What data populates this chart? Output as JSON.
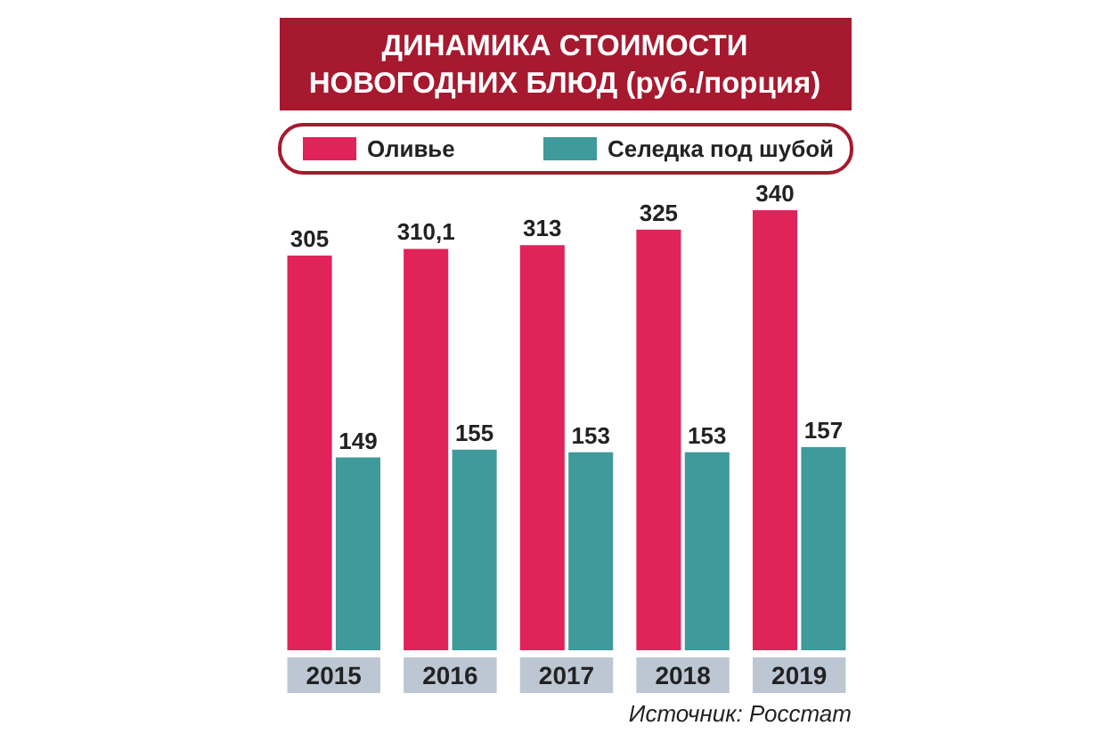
{
  "chart_data": {
    "type": "bar",
    "title": "ДИНАМИКА СТОИМОСТИ\nНОВОГОДНИХ БЛЮД (руб./порция)",
    "categories": [
      "2015",
      "2016",
      "2017",
      "2018",
      "2019"
    ],
    "series": [
      {
        "name": "Оливье",
        "color": "#e0245a",
        "values": [
          305,
          310.1,
          313,
          325,
          340
        ],
        "value_labels": [
          "305",
          "310,1",
          "313",
          "325",
          "340"
        ]
      },
      {
        "name": "Селедка под шубой",
        "color": "#3e9a9b",
        "values": [
          149,
          155,
          153,
          153,
          157
        ]
      }
    ],
    "data_labels": true,
    "legend": "top",
    "annotations": [
      "Источник: Росстат"
    ]
  }
}
